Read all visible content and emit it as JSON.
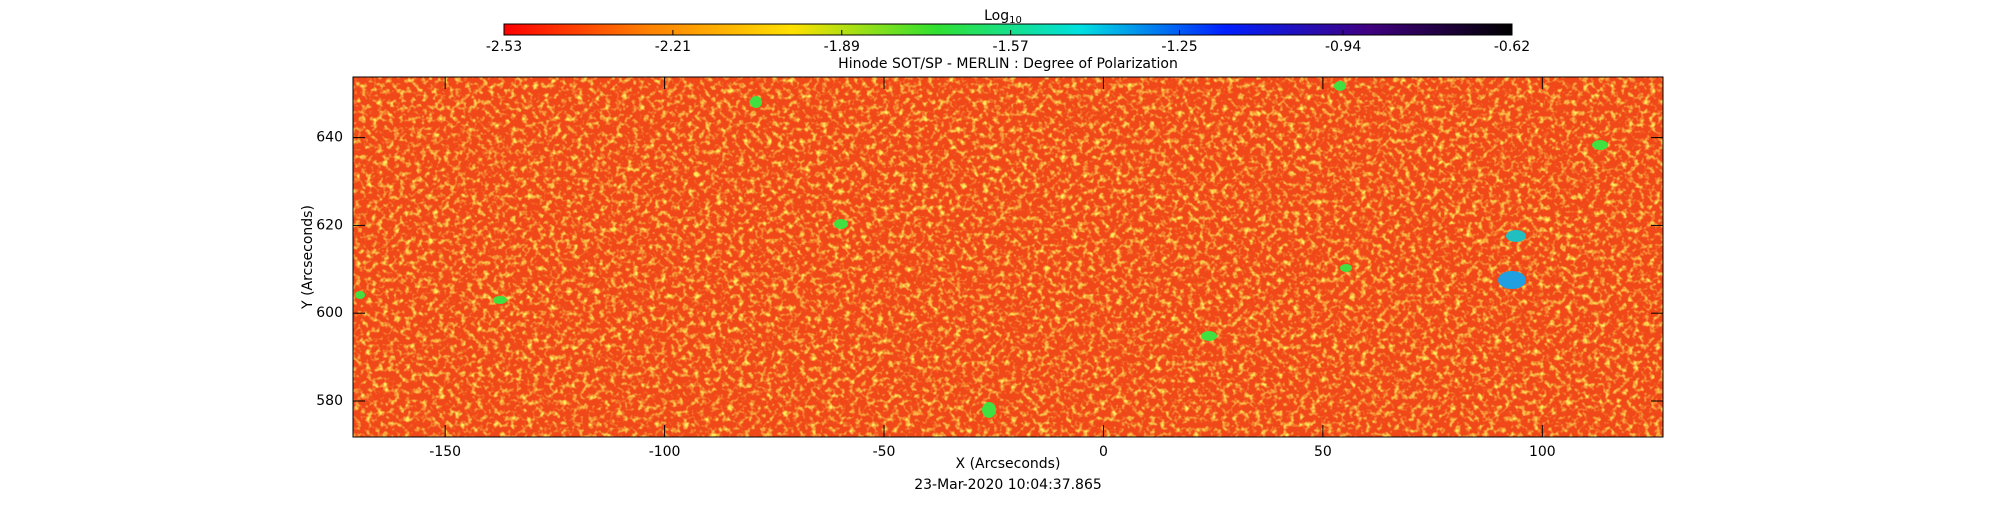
{
  "chart_data": {
    "type": "heatmap",
    "title": "Hinode SOT/SP - MERLIN : Degree of Polarization",
    "colorbar_label": "Log",
    "colorbar_label_sub": "10",
    "colorbar_lim": [
      -2.53,
      -0.62
    ],
    "colorbar_ticks": [
      -2.53,
      -2.21,
      -1.89,
      -1.57,
      -1.25,
      -0.94,
      -0.62
    ],
    "colormap": [
      "#ff0000",
      "#ff8000",
      "#ffe000",
      "#30e030",
      "#00e0e0",
      "#0020ff",
      "#400080",
      "#000000"
    ],
    "x_label": "X (Arcseconds)",
    "y_label": "Y (Arcseconds)",
    "timestamp": "23-Mar-2020 10:04:37.865",
    "xlim": [
      -171,
      127.5
    ],
    "xticks": [
      -150,
      -100,
      -50,
      0,
      50,
      100
    ],
    "ylim": [
      571.8,
      653.8
    ],
    "yticks": [
      580,
      600,
      620,
      640
    ]
  }
}
